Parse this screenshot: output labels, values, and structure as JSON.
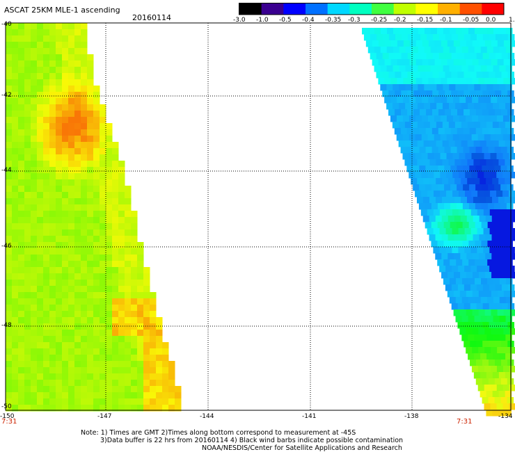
{
  "header": {
    "title": "ASCAT 25KM MLE-1 ascending",
    "date": "20160114"
  },
  "colorbar": {
    "labels": [
      "-3.0",
      "-1.0",
      "-0.5",
      "-0.4",
      "-0.35",
      "-0.3",
      "-0.25",
      "-0.2",
      "-0.15",
      "-0.1",
      "-0.05",
      "0.0",
      "1.0"
    ],
    "colors": [
      "#000000",
      "#3a0090",
      "#0000ff",
      "#0070ff",
      "#00d8ff",
      "#00ffc0",
      "#40ff40",
      "#c0ff00",
      "#ffff00",
      "#ffb000",
      "#ff5000",
      "#ff0000"
    ]
  },
  "axes": {
    "lat_labels": [
      "-40",
      "-42",
      "-44",
      "-46",
      "-48",
      "-50"
    ],
    "lon_labels": [
      "-150",
      "-147",
      "-144",
      "-141",
      "-138",
      "-134"
    ]
  },
  "swath_times": [
    "7:31",
    "7:31"
  ],
  "notes": [
    "Note: 1) Times are GMT 2)Times along bottom correspond to measurement at -45S",
    "3)Data buffer is 22 hrs from 20160114 4) Black wind barbs indicate possible contamination",
    "NOAA/NESDIS/Center for Satellite Applications and Research"
  ]
}
